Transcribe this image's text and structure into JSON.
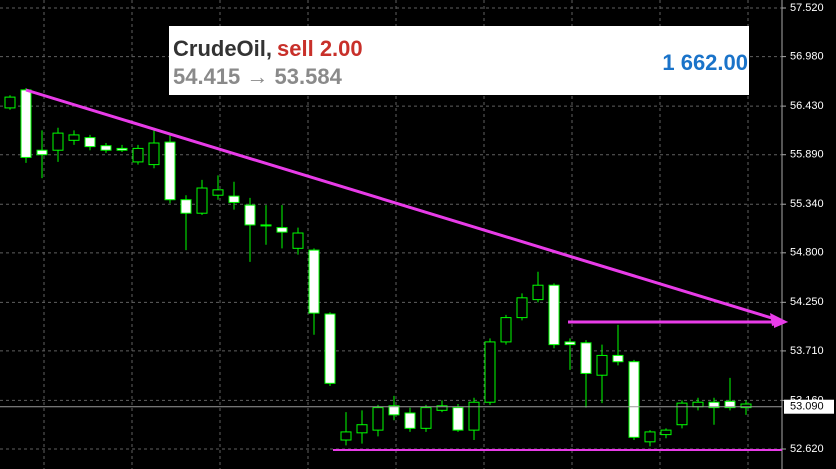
{
  "chart_data": {
    "type": "candlestick",
    "categories": [
      null,
      null,
      null,
      null,
      null,
      null,
      null,
      null,
      null,
      null,
      null,
      null,
      null,
      null,
      null,
      null,
      null,
      null,
      null,
      null,
      null,
      null,
      null,
      null,
      null,
      null,
      null,
      null,
      null,
      null,
      null,
      null,
      null,
      null,
      null,
      null,
      null,
      null,
      null,
      null,
      null,
      null,
      null,
      null,
      null,
      null,
      null
    ],
    "open": [
      56.41,
      56.61,
      55.94,
      55.94,
      56.05,
      56.08,
      55.99,
      55.96,
      55.81,
      55.78,
      56.03,
      55.39,
      55.24,
      55.44,
      55.43,
      55.33,
      55.11,
      55.08,
      54.85,
      54.83,
      54.12,
      52.72,
      52.8,
      52.83,
      53.1,
      53.02,
      52.85,
      53.05,
      53.08,
      52.83,
      53.14,
      53.81,
      54.08,
      54.28,
      54.44,
      53.81,
      53.8,
      53.44,
      53.66,
      53.59,
      52.7,
      52.78,
      52.89,
      53.09,
      53.14,
      53.15,
      53.08
    ],
    "high": [
      56.55,
      56.63,
      56.16,
      56.19,
      56.16,
      56.11,
      56.02,
      56.0,
      56.0,
      56.19,
      56.11,
      55.44,
      55.61,
      55.66,
      55.59,
      55.41,
      55.33,
      55.33,
      55.08,
      54.85,
      54.14,
      53.03,
      53.05,
      53.11,
      53.21,
      53.08,
      53.11,
      53.16,
      53.12,
      53.19,
      53.85,
      54.11,
      54.35,
      54.59,
      54.46,
      53.85,
      53.83,
      53.78,
      54.0,
      53.61,
      52.83,
      52.85,
      53.16,
      53.19,
      53.19,
      53.41,
      53.16
    ],
    "low": [
      56.39,
      55.8,
      55.63,
      55.81,
      56.0,
      55.94,
      55.91,
      55.92,
      55.78,
      55.74,
      55.35,
      54.83,
      55.22,
      55.39,
      55.28,
      54.7,
      54.89,
      54.85,
      54.78,
      53.89,
      53.32,
      52.66,
      52.68,
      52.76,
      52.94,
      52.81,
      52.81,
      53.03,
      52.81,
      52.72,
      53.11,
      53.78,
      54.05,
      54.25,
      53.74,
      53.5,
      53.08,
      53.13,
      53.55,
      52.72,
      52.65,
      52.74,
      52.85,
      53.05,
      52.89,
      53.05,
      53.0
    ],
    "close": [
      56.53,
      55.86,
      55.89,
      56.13,
      56.11,
      55.98,
      55.94,
      55.94,
      55.96,
      56.02,
      55.39,
      55.24,
      55.52,
      55.5,
      55.36,
      55.11,
      55.1,
      55.03,
      55.02,
      54.13,
      53.35,
      52.81,
      52.89,
      53.08,
      53.0,
      52.85,
      53.08,
      53.1,
      52.83,
      53.14,
      53.81,
      54.08,
      54.3,
      54.44,
      53.78,
      53.78,
      53.46,
      53.66,
      53.59,
      52.75,
      52.81,
      52.83,
      53.13,
      53.14,
      53.08,
      53.08,
      53.12
    ],
    "ylim": [
      52.398,
      57.609
    ],
    "yticks": [
      {
        "value": 57.52,
        "label": "57.520"
      },
      {
        "value": 56.98,
        "label": "56.980"
      },
      {
        "value": 56.43,
        "label": "56.430"
      },
      {
        "value": 55.89,
        "label": "55.890"
      },
      {
        "value": 55.34,
        "label": "55.340"
      },
      {
        "value": 54.8,
        "label": "54.800"
      },
      {
        "value": 54.25,
        "label": "54.250"
      },
      {
        "value": 53.71,
        "label": "53.710"
      },
      {
        "value": 53.16,
        "label": "53.160"
      },
      {
        "value": 52.62,
        "label": "52.620"
      }
    ],
    "current_price": {
      "value": 53.09,
      "label": "53.090"
    },
    "grid": true,
    "colors": {
      "background": "#000000",
      "wick": "#00ff00",
      "bull": "#000000",
      "bear": "#ffffff",
      "grid": "#606060"
    }
  },
  "trade": {
    "symbol": "CrudeOil,",
    "action": "sell 2.00",
    "prices": "54.415 → 53.584",
    "profit": "1 662.00"
  }
}
